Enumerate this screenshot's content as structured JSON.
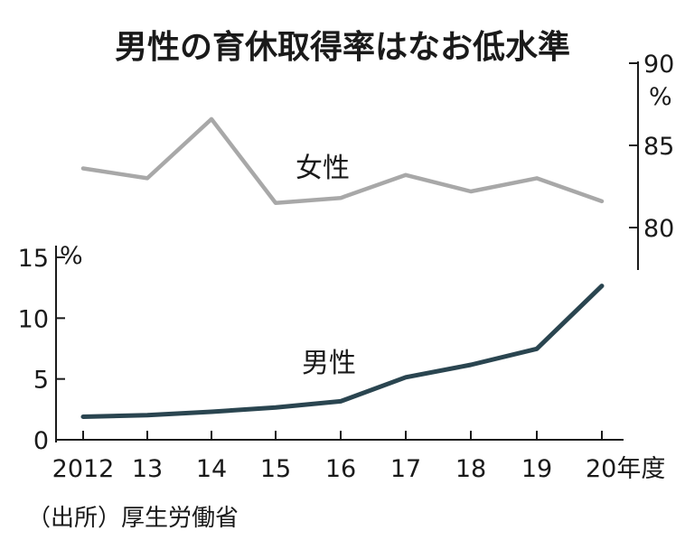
{
  "chart_data": {
    "type": "line",
    "title": "男性の育休取得率はなお低水準",
    "source": "（出所）厚生労働省",
    "x": [
      "2012",
      "13",
      "14",
      "15",
      "16",
      "17",
      "18",
      "19",
      "20年度"
    ],
    "panels": [
      {
        "name": "女性",
        "axis_side": "right",
        "unit": "%",
        "ylim": [
          78,
          90
        ],
        "ticks": [
          "80",
          "85",
          "90"
        ],
        "color": "#a8a8a8",
        "values": [
          83.6,
          83.0,
          86.6,
          81.5,
          81.8,
          83.2,
          82.2,
          83.0,
          81.6
        ]
      },
      {
        "name": "男性",
        "axis_side": "left",
        "unit": "%",
        "ylim": [
          0,
          15
        ],
        "ticks": [
          "0",
          "5",
          "10",
          "15"
        ],
        "color": "#2a4550",
        "values": [
          1.89,
          2.03,
          2.3,
          2.65,
          3.16,
          5.14,
          6.16,
          7.48,
          12.65
        ]
      }
    ]
  }
}
